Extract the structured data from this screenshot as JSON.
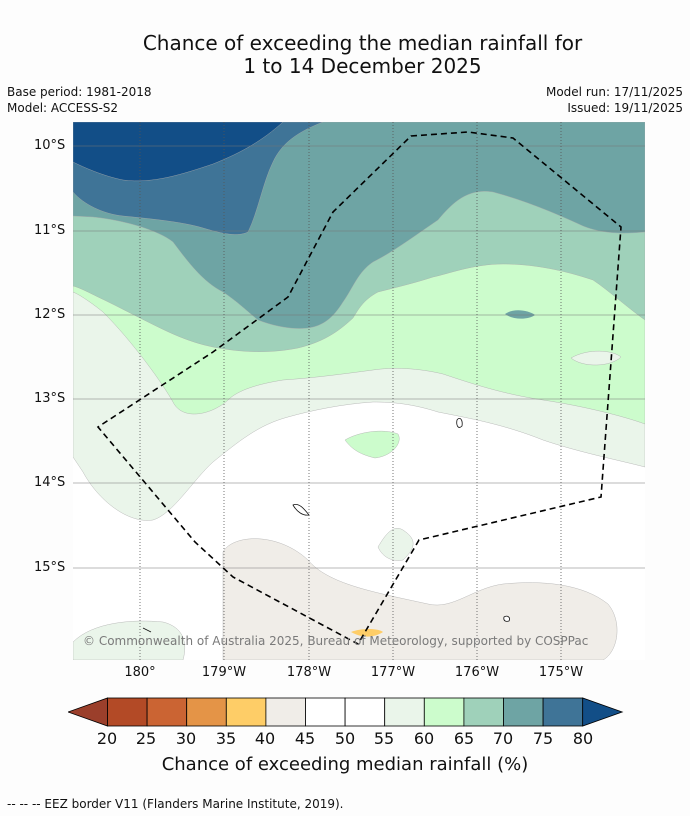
{
  "title": {
    "line1": "Chance of exceeding the median rainfall for",
    "line2": "1 to 14 December 2025"
  },
  "meta": {
    "base_period": "Base period: 1981-2018",
    "model": "Model: ACCESS-S2",
    "model_run": "Model run: 17/11/2025",
    "issued": "Issued: 19/11/2025"
  },
  "map": {
    "lat_labels": [
      "10°S",
      "11°S",
      "12°S",
      "13°S",
      "14°S",
      "15°S"
    ],
    "lon_labels": [
      "180°",
      "179°W",
      "178°W",
      "177°W",
      "176°W",
      "175°W"
    ],
    "copyright": "© Commonwealth of Australia 2025, Bureau of Meteorology, supported by COSPPac",
    "colors": {
      "ocean_white": "#ffffff",
      "c40_45": "#f0ede8",
      "c55_60": "#eaf5ea",
      "c60_65": "#ccfccc",
      "c65_70": "#9fd1ba",
      "c70_75": "#6ea4a4",
      "c75_80": "#3f7497",
      "c80_plus": "#124e87",
      "c35_40": "#fecd67"
    }
  },
  "colorbar": {
    "ticks": [
      "20",
      "25",
      "30",
      "35",
      "40",
      "45",
      "50",
      "55",
      "60",
      "65",
      "70",
      "75",
      "80"
    ],
    "colors": [
      "#9b3f2b",
      "#b34a26",
      "#cb6433",
      "#e49447",
      "#fecd67",
      "#f0ede8",
      "#ffffff",
      "#ffffff",
      "#eaf5ea",
      "#ccfccc",
      "#9fd1ba",
      "#6ea4a4",
      "#3f7497",
      "#124e87"
    ],
    "label": "Chance of exceeding median rainfall (%)"
  },
  "footnote": "--  --  -- EEZ border V11 (Flanders Marine Institute, 2019)."
}
